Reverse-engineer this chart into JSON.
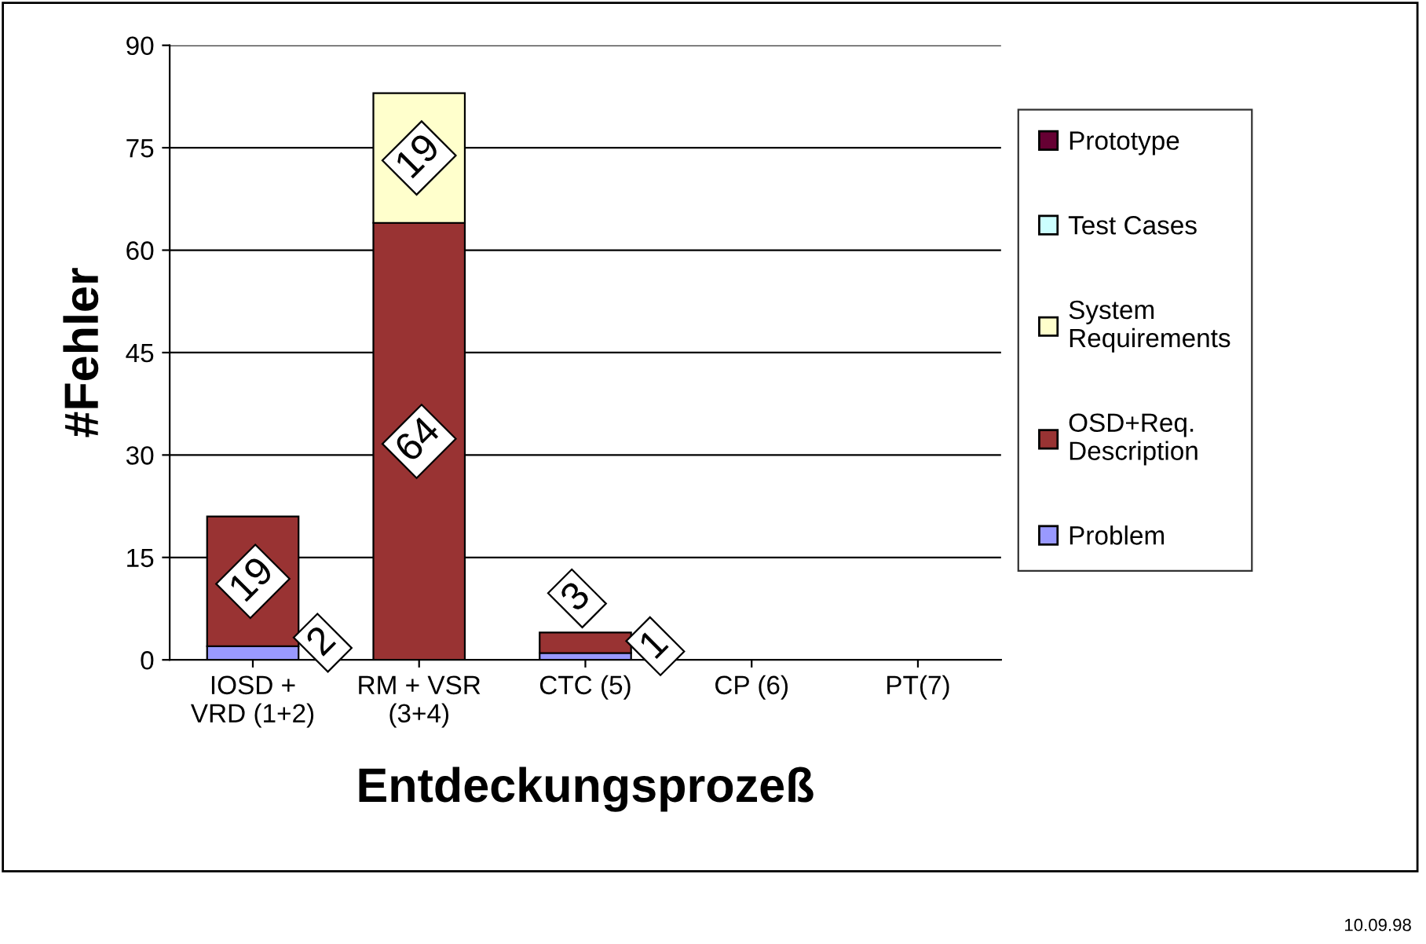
{
  "chart_data": {
    "type": "bar",
    "stacked": true,
    "xlabel": "Entdeckungsprozeß",
    "ylabel": "#Fehler",
    "categories": [
      "IOSD +\nVRD (1+2)",
      "RM + VSR\n(3+4)",
      "CTC (5)",
      "CP (6)",
      "PT(7)"
    ],
    "series": [
      {
        "name": "Problem",
        "color": "#9999ff",
        "values": [
          2,
          null,
          1,
          null,
          null
        ],
        "value_labels": [
          "2",
          null,
          "1",
          null,
          null
        ]
      },
      {
        "name": "OSD+Req.\nDescription",
        "color": "#993333",
        "values": [
          19,
          64,
          3,
          null,
          null
        ],
        "value_labels": [
          "19",
          "64",
          "3",
          null,
          null
        ]
      },
      {
        "name": "System\nRequirements",
        "color": "#ffffcc",
        "values": [
          null,
          19,
          null,
          null,
          null
        ],
        "value_labels": [
          null,
          "19",
          null,
          null,
          null
        ]
      },
      {
        "name": "Test Cases",
        "color": "#ccffff",
        "values": [
          null,
          null,
          null,
          null,
          null
        ]
      },
      {
        "name": "Prototype",
        "color": "#660033",
        "values": [
          null,
          null,
          null,
          null,
          null
        ]
      }
    ],
    "ylim": [
      0,
      90
    ],
    "yticks": [
      0,
      15,
      30,
      45,
      60,
      75,
      90
    ],
    "grid": "y",
    "legend": "right",
    "annotations": [
      "10.09.98"
    ]
  }
}
